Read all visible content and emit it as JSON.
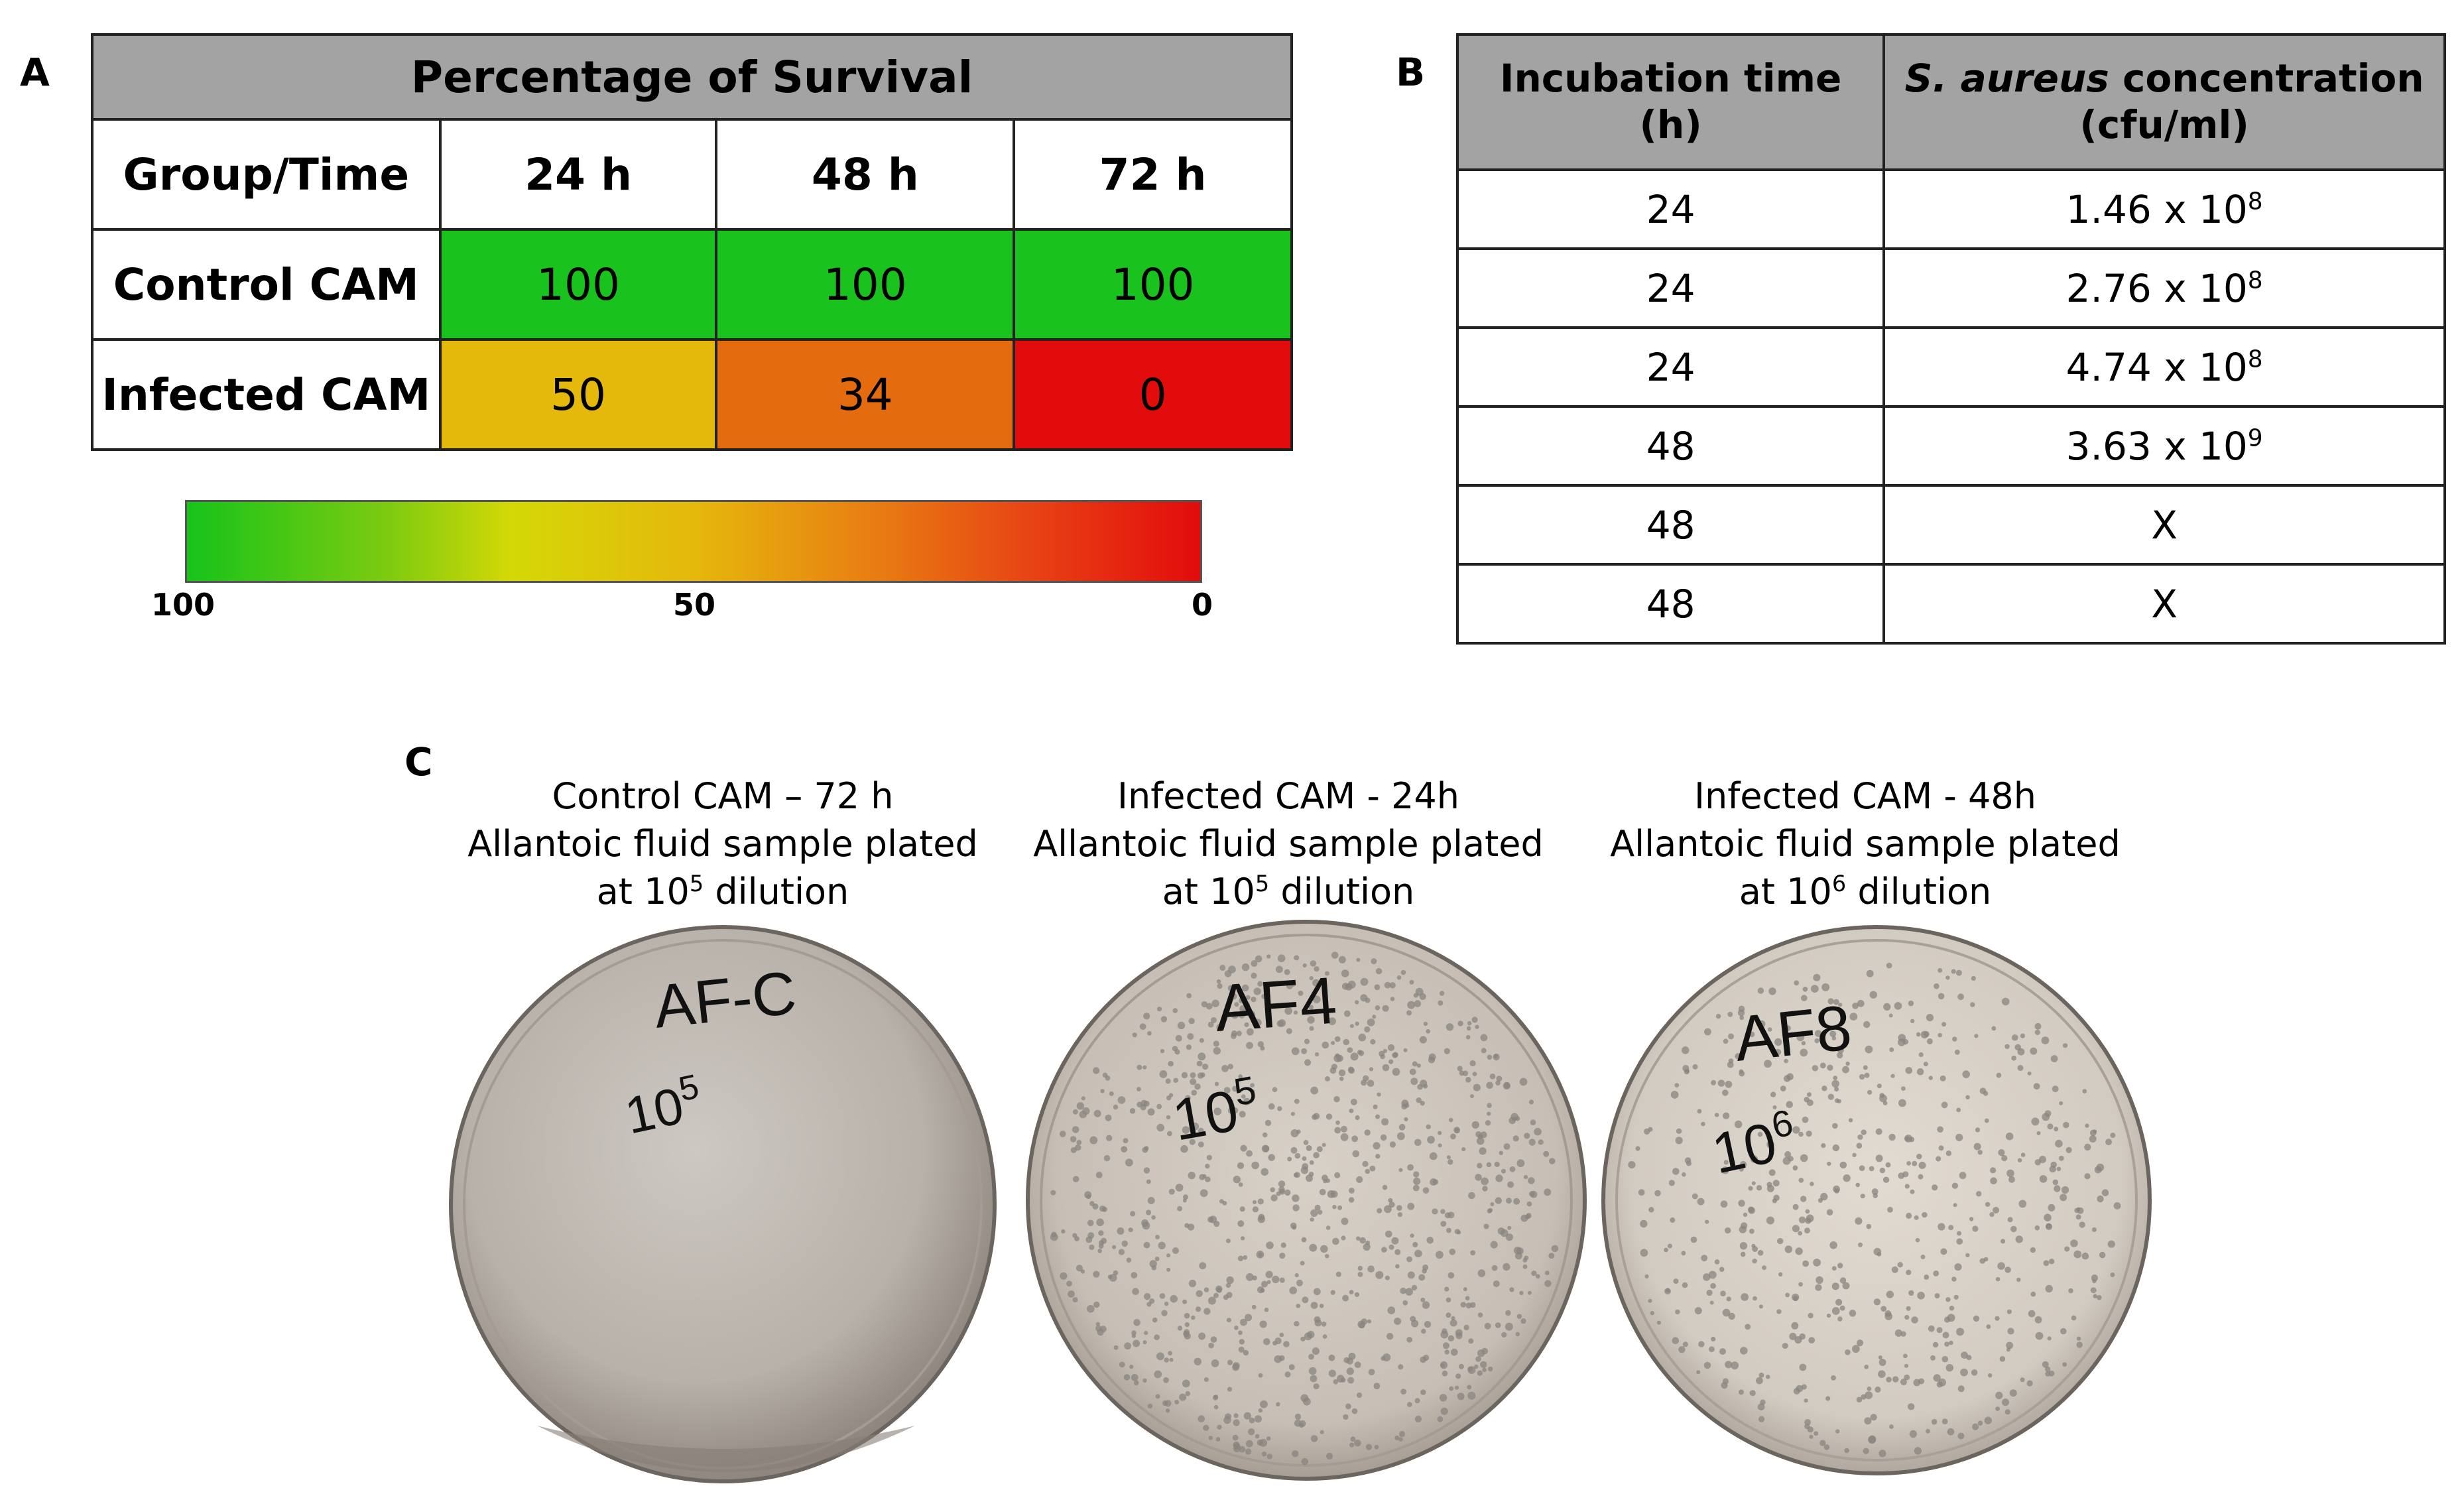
{
  "panelA": {
    "letter": "A",
    "title": "Percentage of Survival",
    "header": [
      "Group/Time",
      "24 h",
      "48 h",
      "72 h"
    ],
    "rows": [
      {
        "label": "Control CAM",
        "values": [
          "100",
          "100",
          "100"
        ],
        "colors": [
          "#19c21c",
          "#19c21c",
          "#19c21c"
        ]
      },
      {
        "label": "Infected CAM",
        "values": [
          "50",
          "34",
          "0"
        ],
        "colors": [
          "#e5b80c",
          "#e56c0e",
          "#e20c0c"
        ]
      }
    ],
    "scale_labels": [
      "100",
      "50",
      "0"
    ]
  },
  "panelB": {
    "letter": "B",
    "header": {
      "col1_line1": "Incubation time",
      "col1_line2": "(h)",
      "col2_italic": "S. aureus",
      "col2_rest": " concentration",
      "col2_line2": "(cfu/ml)"
    },
    "rows": [
      {
        "time": "24",
        "mantissa": "1.46 x 10",
        "exp": "8"
      },
      {
        "time": "24",
        "mantissa": "2.76 x 10",
        "exp": "8"
      },
      {
        "time": "24",
        "mantissa": "4.74 x 10",
        "exp": "8"
      },
      {
        "time": "48",
        "mantissa": "3.63 x 10",
        "exp": "9"
      },
      {
        "time": "48",
        "mantissa": "X",
        "exp": ""
      },
      {
        "time": "48",
        "mantissa": "X",
        "exp": ""
      }
    ]
  },
  "panelC": {
    "letter": "C",
    "plates": [
      {
        "line1": "Control CAM – 72 h",
        "line2": "Allantoic fluid sample plated",
        "line3_pre": "at 10",
        "line3_exp": "5",
        "line3_post": " dilution",
        "label1": "AF-C",
        "label2": "10",
        "label2_exp": "5",
        "colony_count": 0
      },
      {
        "line1": "Infected CAM - 24h",
        "line2": "Allantoic fluid sample plated",
        "line3_pre": "at 10",
        "line3_exp": "5",
        "line3_post": " dilution",
        "label1": "AF4",
        "label2": "10",
        "label2_exp": "5",
        "colony_count": 900
      },
      {
        "line1": "Infected CAM - 48h",
        "line2": "Allantoic fluid sample plated",
        "line3_pre": "at 10",
        "line3_exp": "6",
        "line3_post": " dilution",
        "label1": "AF8",
        "label2": "10",
        "label2_exp": "6",
        "colony_count": 600
      }
    ]
  },
  "colors": {
    "header_gray": "#a3a3a3",
    "plate_fill": "#c9c3bc",
    "colony": "#8a8480"
  }
}
